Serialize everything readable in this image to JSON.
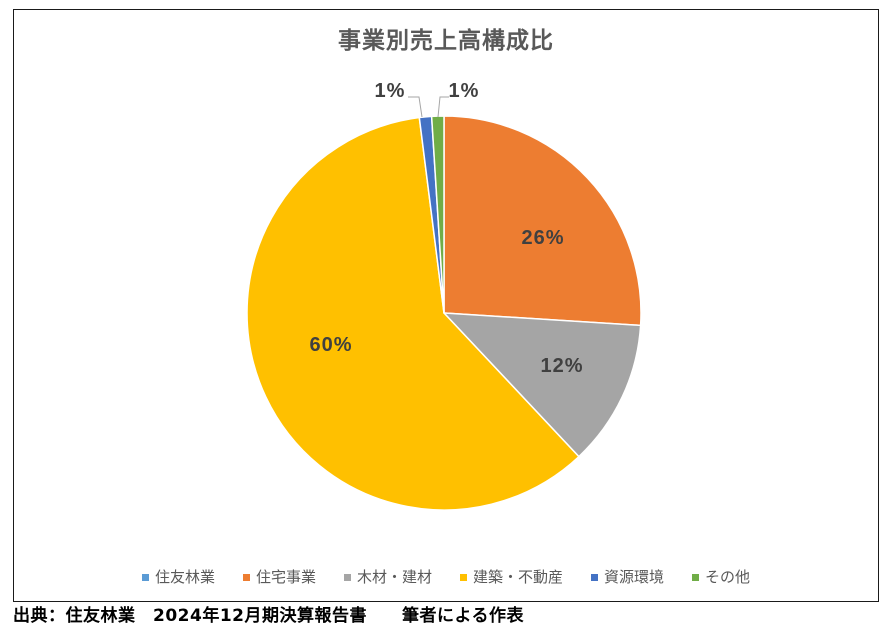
{
  "chart_data": {
    "type": "pie",
    "title": "事業別売上高構成比",
    "categories": [
      "住友林業",
      "住宅事業",
      "木材・建材",
      "建築・不動産",
      "資源環境",
      "その他"
    ],
    "values": [
      0,
      26,
      12,
      60,
      1,
      1
    ],
    "data_labels": [
      null,
      "26%",
      "12%",
      "60%",
      "1%",
      "1%"
    ],
    "colors": [
      "#5B9BD5",
      "#ED7D31",
      "#A5A5A5",
      "#FFC000",
      "#4472C4",
      "#70AD47"
    ],
    "legend_position": "bottom"
  },
  "footer": {
    "source": "出典：住友林業　2024年12月期決算報告書　　筆者による作表"
  }
}
